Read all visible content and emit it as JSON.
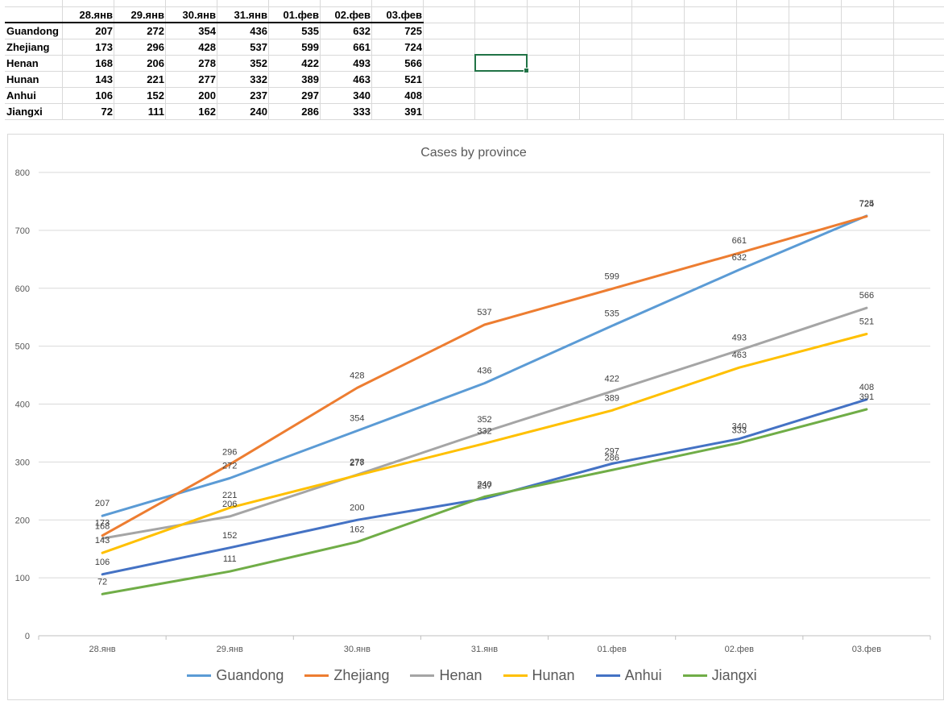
{
  "table": {
    "columns": [
      "28.янв",
      "29.янв",
      "30.янв",
      "31.янв",
      "01.фев",
      "02.фев",
      "03.фев"
    ],
    "rows": [
      {
        "name": "Guandong",
        "values": [
          207,
          272,
          354,
          436,
          535,
          632,
          725
        ]
      },
      {
        "name": "Zhejiang",
        "values": [
          173,
          296,
          428,
          537,
          599,
          661,
          724
        ]
      },
      {
        "name": "Henan",
        "values": [
          168,
          206,
          278,
          352,
          422,
          493,
          566
        ]
      },
      {
        "name": "Hunan",
        "values": [
          143,
          221,
          277,
          332,
          389,
          463,
          521
        ]
      },
      {
        "name": "Anhui",
        "values": [
          106,
          152,
          200,
          237,
          297,
          340,
          408
        ]
      },
      {
        "name": "Jiangxi",
        "values": [
          72,
          111,
          162,
          240,
          286,
          333,
          391
        ]
      }
    ]
  },
  "chart_data": {
    "type": "line",
    "title": "Cases by province",
    "xlabel": "",
    "ylabel": "",
    "categories": [
      "28.янв",
      "29.янв",
      "30.янв",
      "31.янв",
      "01.фев",
      "02.фев",
      "03.фев"
    ],
    "ylim": [
      0,
      800
    ],
    "yticks": [
      "0",
      "100",
      "200",
      "300",
      "400",
      "500",
      "600",
      "700",
      "800"
    ],
    "grid": true,
    "legend": "bottom",
    "data_labels": true,
    "series": [
      {
        "name": "Guandong",
        "color": "#5b9bd5",
        "values": [
          207,
          272,
          354,
          436,
          535,
          632,
          725
        ]
      },
      {
        "name": "Zhejiang",
        "color": "#ed7d31",
        "values": [
          173,
          296,
          428,
          537,
          599,
          661,
          724
        ]
      },
      {
        "name": "Henan",
        "color": "#a5a5a5",
        "values": [
          168,
          206,
          278,
          352,
          422,
          493,
          566
        ]
      },
      {
        "name": "Hunan",
        "color": "#ffc000",
        "values": [
          143,
          221,
          277,
          332,
          389,
          463,
          521
        ]
      },
      {
        "name": "Anhui",
        "color": "#4472c4",
        "values": [
          106,
          152,
          200,
          237,
          297,
          340,
          408
        ]
      },
      {
        "name": "Jiangxi",
        "color": "#70ad47",
        "values": [
          72,
          111,
          162,
          240,
          286,
          333,
          391
        ]
      }
    ]
  }
}
